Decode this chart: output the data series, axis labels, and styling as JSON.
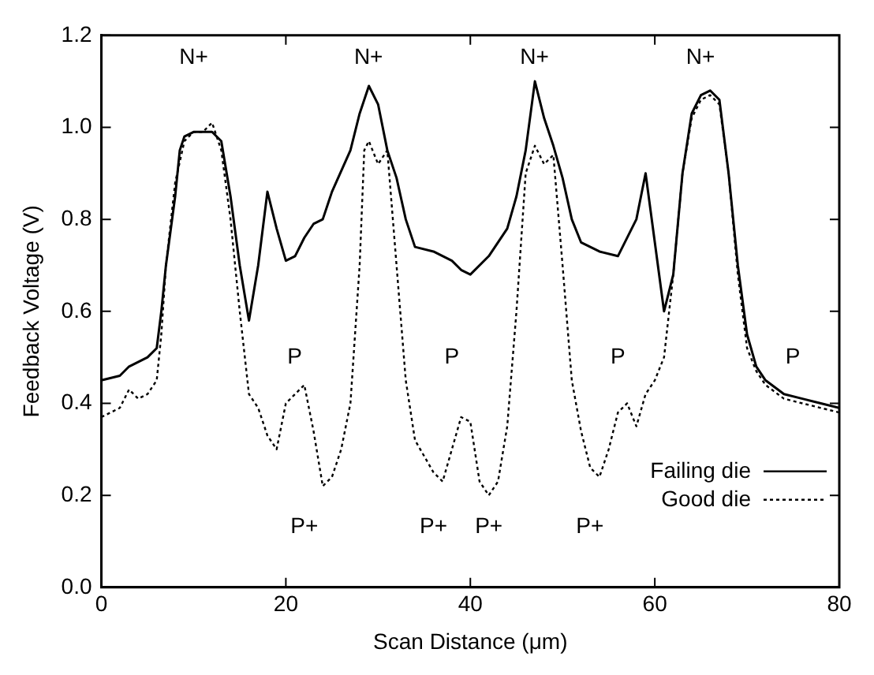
{
  "chart_data": {
    "type": "line",
    "xlabel": "Scan Distance (μm)",
    "ylabel": "Feedback Voltage (V)",
    "xlim": [
      0,
      80
    ],
    "xticks": [
      0,
      20,
      40,
      60,
      80
    ],
    "ylim": [
      0,
      1.2
    ],
    "yticks": [
      {
        "value": 0,
        "label": "0.0"
      },
      0.2,
      0.4,
      0.6,
      0.8,
      {
        "value": 1,
        "label": "1.0"
      },
      1.2
    ],
    "grid": false,
    "legend": "bottom right",
    "marker": "none",
    "series": [
      {
        "name": "Failing die",
        "color": "#000000",
        "line_style": "solid",
        "x": [
          0,
          2,
          3,
          5,
          6,
          6.5,
          7,
          8,
          8.5,
          9,
          10,
          12,
          13,
          14,
          15,
          16,
          17,
          18,
          19,
          20,
          21,
          22,
          23,
          24,
          25,
          27,
          28,
          29,
          30,
          31,
          32,
          33,
          34,
          36,
          38,
          39,
          40,
          42,
          44,
          45,
          46,
          47,
          48,
          49,
          50,
          51,
          52,
          54,
          56,
          58,
          59,
          60,
          61,
          62,
          63,
          64,
          65,
          66,
          67,
          68,
          69,
          70,
          71,
          72,
          74,
          76,
          78,
          80
        ],
        "values": [
          0.45,
          0.46,
          0.48,
          0.5,
          0.52,
          0.6,
          0.7,
          0.85,
          0.95,
          0.98,
          0.99,
          0.99,
          0.97,
          0.85,
          0.7,
          0.58,
          0.7,
          0.86,
          0.78,
          0.71,
          0.72,
          0.76,
          0.79,
          0.8,
          0.86,
          0.95,
          1.03,
          1.09,
          1.05,
          0.95,
          0.89,
          0.8,
          0.74,
          0.73,
          0.71,
          0.69,
          0.68,
          0.72,
          0.78,
          0.85,
          0.95,
          1.1,
          1.02,
          0.96,
          0.89,
          0.8,
          0.75,
          0.73,
          0.72,
          0.8,
          0.9,
          0.75,
          0.6,
          0.68,
          0.9,
          1.03,
          1.07,
          1.08,
          1.06,
          0.9,
          0.7,
          0.55,
          0.48,
          0.45,
          0.42,
          0.41,
          0.4,
          0.39
        ]
      },
      {
        "name": "Good die",
        "color": "#000000",
        "line_style": "dotted",
        "x": [
          0,
          2,
          3,
          4,
          5,
          6,
          6.5,
          7,
          8,
          9,
          10,
          11,
          12,
          13,
          14,
          15,
          16,
          17,
          18,
          19,
          20,
          21,
          22,
          23,
          24,
          25,
          26,
          27,
          28,
          28.5,
          29,
          30,
          31,
          32,
          33,
          34,
          36,
          37,
          38,
          39,
          40,
          41,
          42,
          43,
          44,
          45,
          46,
          47,
          48,
          49,
          50,
          51,
          52,
          53,
          54,
          55,
          56,
          57,
          58,
          59,
          60,
          61,
          62,
          63,
          64,
          65,
          66,
          67,
          68,
          69,
          70,
          71,
          72,
          74,
          76,
          78,
          80
        ],
        "values": [
          0.37,
          0.39,
          0.43,
          0.41,
          0.42,
          0.45,
          0.55,
          0.7,
          0.88,
          0.97,
          0.99,
          0.99,
          1.01,
          0.95,
          0.8,
          0.6,
          0.42,
          0.39,
          0.33,
          0.3,
          0.4,
          0.42,
          0.44,
          0.34,
          0.22,
          0.24,
          0.3,
          0.4,
          0.7,
          0.95,
          0.97,
          0.92,
          0.95,
          0.7,
          0.45,
          0.32,
          0.25,
          0.23,
          0.3,
          0.37,
          0.36,
          0.23,
          0.2,
          0.23,
          0.35,
          0.6,
          0.9,
          0.96,
          0.92,
          0.94,
          0.7,
          0.45,
          0.34,
          0.26,
          0.24,
          0.3,
          0.38,
          0.4,
          0.35,
          0.42,
          0.45,
          0.5,
          0.68,
          0.9,
          1.02,
          1.06,
          1.07,
          1.05,
          0.9,
          0.68,
          0.52,
          0.47,
          0.44,
          0.41,
          0.4,
          0.39,
          0.38
        ]
      }
    ],
    "annotations": [
      "N+",
      "N+",
      "N+",
      "N+",
      "P",
      "P",
      "P",
      "P",
      "P+",
      "P+",
      "P+",
      "P+"
    ]
  }
}
